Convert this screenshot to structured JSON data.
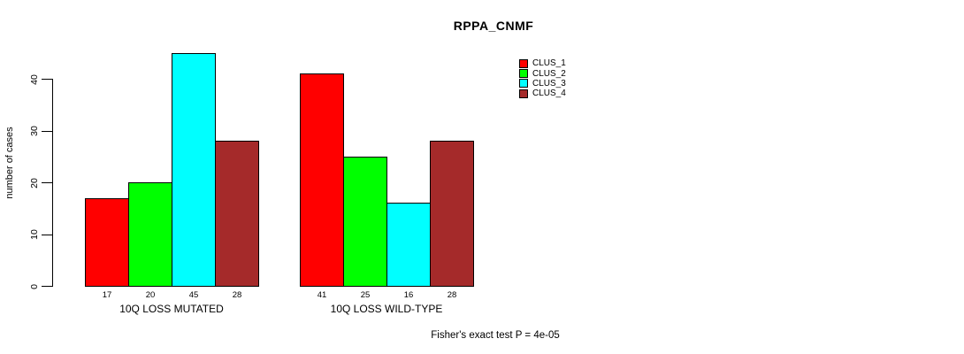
{
  "chart_data": {
    "type": "bar",
    "title": "RPPA_CNMF",
    "ylabel": "number of cases",
    "xlabel": "",
    "categories": [
      "10Q LOSS MUTATED",
      "10Q LOSS WILD-TYPE"
    ],
    "series": [
      {
        "name": "CLUS_1",
        "color": "#FF0000",
        "values": [
          17,
          41
        ]
      },
      {
        "name": "CLUS_2",
        "color": "#00FF00",
        "values": [
          20,
          25
        ]
      },
      {
        "name": "CLUS_3",
        "color": "#00FFFF",
        "values": [
          45,
          16
        ]
      },
      {
        "name": "CLUS_4",
        "color": "#A52A2A",
        "values": [
          28,
          28
        ]
      }
    ],
    "bar_value_labels": [
      [
        17,
        20,
        45,
        28
      ],
      [
        41,
        25,
        16,
        28
      ]
    ],
    "yticks": [
      0,
      10,
      20,
      30,
      40
    ],
    "ylim": [
      0,
      45
    ],
    "grid": false,
    "legend_position": "top-right",
    "legend_box": false,
    "annotation": "Fisher's exact test P = 4e-05"
  }
}
